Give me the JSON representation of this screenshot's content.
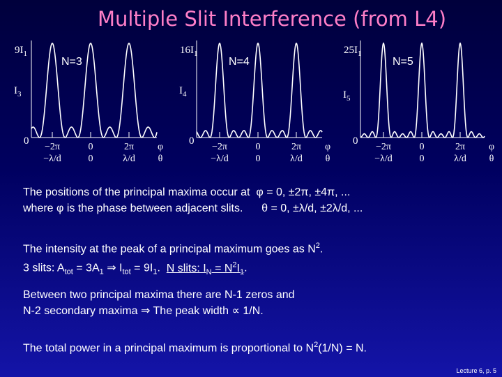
{
  "title": "Multiple Slit Interference (from L4)",
  "plots": [
    {
      "peak": [
        "9I",
        "1"
      ],
      "label": "N=3",
      "secondary": [
        "I",
        "3"
      ],
      "origin": "0",
      "phase_ticks": [
        "−2π",
        "0",
        "2π",
        "φ"
      ],
      "angle_ticks": [
        "−λ/d",
        "0",
        "λ/d",
        "θ"
      ]
    },
    {
      "peak": [
        "16I",
        "1"
      ],
      "label": "N=4",
      "secondary": [
        "I",
        "4"
      ],
      "origin": "0",
      "phase_ticks": [
        "−2π",
        "0",
        "2π",
        "φ"
      ],
      "angle_ticks": [
        "−λ/d",
        "0",
        "λ/d",
        "θ"
      ]
    },
    {
      "peak": [
        "25I",
        "1"
      ],
      "label": "N=5",
      "secondary": [
        "I",
        "5"
      ],
      "origin": "0",
      "phase_ticks": [
        "−2π",
        "0",
        "2π",
        "φ"
      ],
      "angle_ticks": [
        "−λ/d",
        "0",
        "λ/d",
        "θ"
      ]
    }
  ],
  "paragraphs": [
    [
      [
        "The positions of the principal maxima occur at",
        "φ = 0, ±2π, ±4π, ..."
      ],
      [
        "where φ is the phase between adjacent slits.",
        "θ = 0, ±λ/d, ±2λ/d, ..."
      ]
    ],
    [
      [
        "The intensity at the peak of a principal maximum goes as N",
        "2",
        "."
      ],
      [
        "3 slits: A",
        "tot",
        " = 3A",
        "1",
        " ⇒ I",
        "tot",
        " = 9I",
        "1",
        ".  ",
        "N slits: I",
        "N",
        " = N",
        "2",
        "I",
        "1",
        "."
      ]
    ],
    [
      [
        "Between two principal maxima there are N-1 zeros and"
      ],
      [
        "N-2 secondary maxima ",
        "⇒ The peak width ∝ 1/N",
        "."
      ]
    ],
    [
      [
        "The total power in a principal maximum is proportional to N",
        "2",
        "(1/N) = N."
      ]
    ]
  ],
  "footer": "Lecture 6, p. 5"
}
